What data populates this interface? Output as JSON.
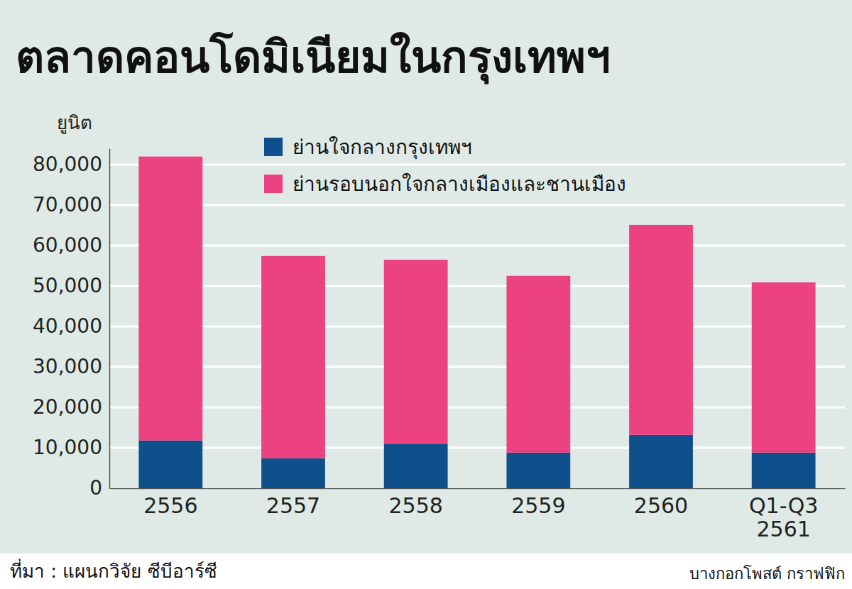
{
  "chart_data": {
    "type": "bar",
    "title": "ตลาดคอนโดมิเนียมในกรุงเทพฯ",
    "y_label": "ยูนิต",
    "categories": [
      "2556",
      "2557",
      "2558",
      "2559",
      "2560",
      "Q1-Q3 2561"
    ],
    "series": [
      {
        "name": "ย่านใจกลางกรุงเทพฯ",
        "color": "#0e4f8c",
        "values": [
          11800,
          7400,
          11000,
          8800,
          13200,
          8800
        ]
      },
      {
        "name": "ย่านรอบนอกใจกลางเมืองและชานเมือง",
        "color": "#ec4281",
        "values": [
          70200,
          50000,
          45500,
          43700,
          51900,
          42100
        ]
      }
    ],
    "stacked": true,
    "ylim": [
      0,
      84000
    ],
    "yticks": [
      0,
      {
        "value": 10000,
        "label": "10,000"
      },
      {
        "value": 20000,
        "label": "20,000"
      },
      {
        "value": 30000,
        "label": "30,000"
      },
      {
        "value": 40000,
        "label": "40,000"
      },
      {
        "value": 50000,
        "label": "50,000"
      },
      {
        "value": 60000,
        "label": "60,000"
      },
      {
        "value": 70000,
        "label": "70,000"
      },
      {
        "value": 80000,
        "label": "80,000"
      }
    ],
    "grid": true,
    "legend": "top",
    "source": "ที่มา : แผนกวิจัย ซีบีอาร์ซี",
    "credit": "บางกอกโพสต์ กราฟฟิก"
  }
}
